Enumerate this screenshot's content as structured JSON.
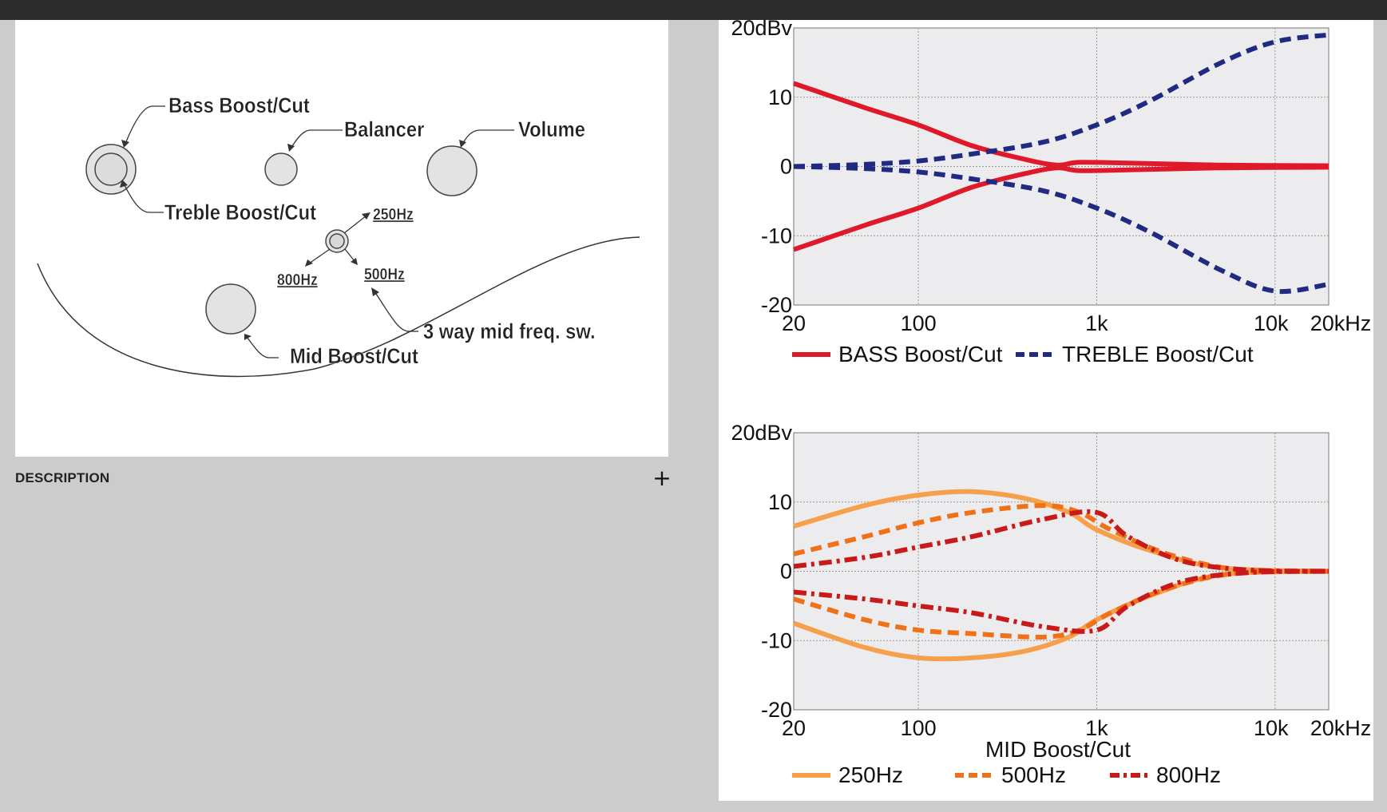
{
  "diagram": {
    "labels": {
      "bass": "Bass Boost/Cut",
      "balancer": "Balancer",
      "volume": "Volume",
      "treble": "Treble Boost/Cut",
      "f250": "250Hz",
      "f800": "800Hz",
      "f500": "500Hz",
      "switch": "3 way mid freq. sw.",
      "mid": "Mid Boost/Cut"
    }
  },
  "description": {
    "label": "DESCRIPTION",
    "expand_icon": "plus-icon",
    "expand_glyph": "+"
  },
  "colors": {
    "bass": "#e0192a",
    "treble": "#1f2a80",
    "f250": "#f7a04b",
    "f500": "#f07218",
    "f800": "#c81a1a",
    "plot_bg": "#ececef"
  },
  "chart_data": [
    {
      "type": "line",
      "title": "",
      "xlabel": "",
      "ylabel": "20dBv",
      "x_scale": "log",
      "xlim": [
        20,
        20000
      ],
      "ylim": [
        -20,
        20
      ],
      "x_ticks": [
        20,
        100,
        1000,
        10000,
        20000
      ],
      "x_tick_labels": [
        "20",
        "100",
        "1k",
        "10k",
        "20kHz"
      ],
      "y_ticks": [
        20,
        10,
        0,
        -10,
        -20
      ],
      "y_tick_labels": [
        "20dBv",
        "10",
        "0",
        "-10",
        "-20"
      ],
      "grid": true,
      "legend": "bottom",
      "series": [
        {
          "name": "BASS Boost/Cut",
          "style": "solid",
          "x": [
            20,
            50,
            100,
            200,
            400,
            600,
            800,
            1500,
            5000,
            20000
          ],
          "y": [
            12,
            8.5,
            6,
            3,
            1,
            0.2,
            0.6,
            0.5,
            0.2,
            0.1
          ]
        },
        {
          "style": "solid",
          "x": [
            20,
            50,
            100,
            200,
            400,
            600,
            800,
            1500,
            5000,
            20000
          ],
          "y": [
            -12,
            -8.5,
            -6,
            -3,
            -1,
            -0.2,
            -0.6,
            -0.5,
            -0.2,
            -0.1
          ]
        },
        {
          "name": "TREBLE Boost/Cut",
          "style": "dashed",
          "x": [
            20,
            50,
            100,
            200,
            500,
            1000,
            2000,
            5000,
            10000,
            20000
          ],
          "y": [
            0,
            0.3,
            0.8,
            1.8,
            3.5,
            6,
            9.5,
            15,
            18,
            19
          ]
        },
        {
          "style": "dashed",
          "x": [
            20,
            50,
            100,
            200,
            500,
            1000,
            2000,
            5000,
            10000,
            20000
          ],
          "y": [
            0,
            -0.3,
            -0.8,
            -1.8,
            -3.5,
            -6,
            -9.5,
            -15,
            -18,
            -17
          ]
        }
      ]
    },
    {
      "type": "line",
      "title": "",
      "xlabel": "MID Boost/Cut",
      "ylabel": "20dBv",
      "x_scale": "log",
      "xlim": [
        20,
        20000
      ],
      "ylim": [
        -20,
        20
      ],
      "x_ticks": [
        20,
        100,
        1000,
        10000,
        20000
      ],
      "x_tick_labels": [
        "20",
        "100",
        "1k",
        "10k",
        "20kHz"
      ],
      "y_ticks": [
        20,
        10,
        0,
        -10,
        -20
      ],
      "y_tick_labels": [
        "20dBv",
        "10",
        "0",
        "-10",
        "-20"
      ],
      "grid": true,
      "legend": "bottom",
      "series": [
        {
          "name": "250Hz",
          "style": "solid",
          "x": [
            20,
            50,
            100,
            200,
            400,
            700,
            1000,
            2000,
            5000,
            20000
          ],
          "y": [
            6.5,
            9.5,
            11,
            11.5,
            10.5,
            8.5,
            6,
            3,
            0.5,
            0
          ]
        },
        {
          "style": "solid",
          "x": [
            20,
            50,
            100,
            200,
            400,
            700,
            1000,
            2000,
            5000,
            20000
          ],
          "y": [
            -7.5,
            -11,
            -12.5,
            -12.5,
            -11.5,
            -9.5,
            -7,
            -3.5,
            -0.5,
            0
          ]
        },
        {
          "name": "500Hz",
          "style": "dashed",
          "x": [
            20,
            50,
            100,
            200,
            500,
            800,
            1200,
            2500,
            6000,
            20000
          ],
          "y": [
            2.5,
            5,
            7,
            8.5,
            9.5,
            8.5,
            6,
            2.5,
            0.3,
            0
          ]
        },
        {
          "style": "dashed",
          "x": [
            20,
            50,
            100,
            200,
            500,
            800,
            1200,
            2500,
            6000,
            20000
          ],
          "y": [
            -4,
            -7,
            -8.5,
            -9,
            -9.5,
            -8.5,
            -6,
            -2.5,
            -0.3,
            0
          ]
        },
        {
          "name": "800Hz",
          "style": "dashdot",
          "x": [
            20,
            50,
            100,
            200,
            500,
            1000,
            1500,
            3000,
            7000,
            20000
          ],
          "y": [
            0.7,
            2,
            3.5,
            5,
            7.5,
            8.5,
            5,
            1.5,
            0.2,
            0
          ]
        },
        {
          "style": "dashdot",
          "x": [
            20,
            50,
            100,
            200,
            500,
            1000,
            1500,
            3000,
            7000,
            20000
          ],
          "y": [
            -3,
            -4,
            -5,
            -6,
            -8,
            -8.5,
            -5,
            -1.5,
            -0.2,
            0
          ]
        }
      ]
    }
  ]
}
